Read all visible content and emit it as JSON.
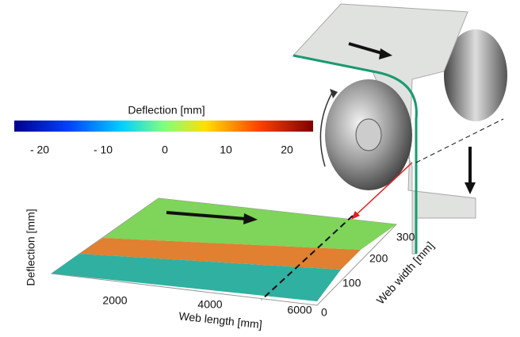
{
  "colorbar": {
    "title": "Deflection [mm]",
    "ticks": [
      "- 20",
      "- 10",
      "0",
      "10",
      "20"
    ]
  },
  "plot": {
    "z_label": "Deflection [mm]",
    "x_label": "Web length [mm]",
    "y_label": "Web width [mm]",
    "x_ticks": [
      "2000",
      "4000",
      "6000"
    ],
    "y_ticks": [
      "0",
      "100",
      "200",
      "300"
    ]
  }
}
